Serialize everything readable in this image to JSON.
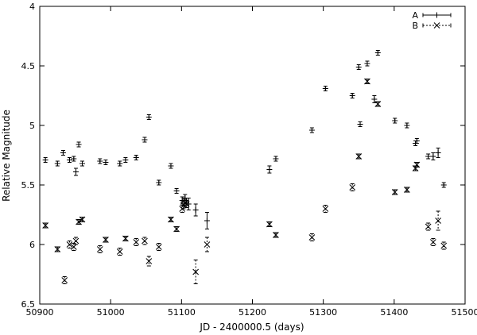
{
  "chart_data": {
    "type": "scatter",
    "title": "",
    "xlabel": "JD - 2400000.5 (days)",
    "ylabel": "Relative Magnitude",
    "xlim": [
      50900,
      51500
    ],
    "ylim": [
      4,
      6.5
    ],
    "y_inverted": true,
    "grid": false,
    "legend_position": "top-right",
    "x_ticks": [
      50900,
      51000,
      51100,
      51200,
      51300,
      51400,
      51500
    ],
    "y_ticks": [
      4,
      4.5,
      5,
      5.5,
      6,
      6.5
    ],
    "x_tick_labels": [
      "50900",
      "51000",
      "51100",
      "51200",
      "51300",
      "51400",
      "51500"
    ],
    "y_tick_labels": [
      "4",
      "4.5",
      "5",
      "5.5",
      "6",
      "6.5"
    ],
    "series": [
      {
        "name": "A",
        "marker": "plus",
        "line": "solid",
        "color": "#000000",
        "x": [
          50908,
          50925,
          50933,
          50942,
          50948,
          50951,
          50955,
          50960,
          50985,
          50993,
          51013,
          51021,
          51036,
          51048,
          51054,
          51068,
          51085,
          51093,
          51101,
          51103,
          51105,
          51107,
          51110,
          51120,
          51136,
          51224,
          51233,
          51284,
          51303,
          51341,
          51350,
          51352,
          51362,
          51372,
          51377,
          51401,
          51418,
          51430,
          51432,
          51448,
          51455,
          51462,
          51470
        ],
        "y": [
          5.29,
          5.32,
          5.23,
          5.29,
          5.28,
          5.39,
          5.16,
          5.32,
          5.3,
          5.31,
          5.32,
          5.29,
          5.27,
          5.12,
          4.93,
          5.48,
          5.34,
          5.55,
          5.63,
          5.64,
          5.61,
          5.64,
          5.66,
          5.71,
          5.8,
          5.37,
          5.28,
          5.04,
          4.69,
          4.75,
          4.51,
          4.99,
          4.48,
          4.78,
          4.39,
          4.96,
          5.0,
          5.15,
          5.13,
          5.26,
          5.26,
          5.23,
          5.5
        ],
        "err": [
          0.02,
          0.02,
          0.02,
          0.02,
          0.02,
          0.03,
          0.02,
          0.02,
          0.02,
          0.02,
          0.02,
          0.02,
          0.02,
          0.02,
          0.02,
          0.02,
          0.02,
          0.02,
          0.03,
          0.03,
          0.03,
          0.03,
          0.05,
          0.05,
          0.07,
          0.03,
          0.02,
          0.02,
          0.02,
          0.02,
          0.02,
          0.02,
          0.02,
          0.03,
          0.02,
          0.02,
          0.02,
          0.02,
          0.02,
          0.02,
          0.03,
          0.04,
          0.02
        ]
      },
      {
        "name": "B",
        "marker": "cross",
        "line": "dashed",
        "color": "#000000",
        "x": [
          50908,
          50925,
          50935,
          50942,
          50948,
          50951,
          50955,
          50960,
          50985,
          50993,
          51013,
          51021,
          51036,
          51048,
          51054,
          51068,
          51085,
          51093,
          51101,
          51103,
          51105,
          51107,
          51120,
          51136,
          51224,
          51233,
          51284,
          51303,
          51341,
          51350,
          51362,
          51377,
          51401,
          51418,
          51430,
          51432,
          51448,
          51455,
          51462,
          51470
        ],
        "y": [
          5.84,
          6.04,
          6.3,
          6.0,
          6.02,
          5.97,
          5.81,
          5.79,
          6.04,
          5.96,
          6.06,
          5.95,
          5.98,
          5.97,
          6.14,
          6.02,
          5.79,
          5.87,
          5.7,
          5.67,
          5.65,
          5.66,
          6.23,
          6.0,
          5.83,
          5.92,
          5.94,
          5.7,
          5.52,
          5.26,
          4.63,
          4.82,
          5.56,
          5.54,
          5.36,
          5.33,
          5.85,
          5.98,
          5.8,
          6.01
        ],
        "err": [
          0.02,
          0.02,
          0.03,
          0.03,
          0.03,
          0.03,
          0.02,
          0.02,
          0.03,
          0.02,
          0.03,
          0.02,
          0.03,
          0.03,
          0.04,
          0.03,
          0.02,
          0.02,
          0.03,
          0.03,
          0.03,
          0.03,
          0.1,
          0.06,
          0.02,
          0.02,
          0.03,
          0.03,
          0.03,
          0.02,
          0.02,
          0.02,
          0.02,
          0.02,
          0.02,
          0.02,
          0.03,
          0.03,
          0.08,
          0.03
        ]
      }
    ]
  }
}
